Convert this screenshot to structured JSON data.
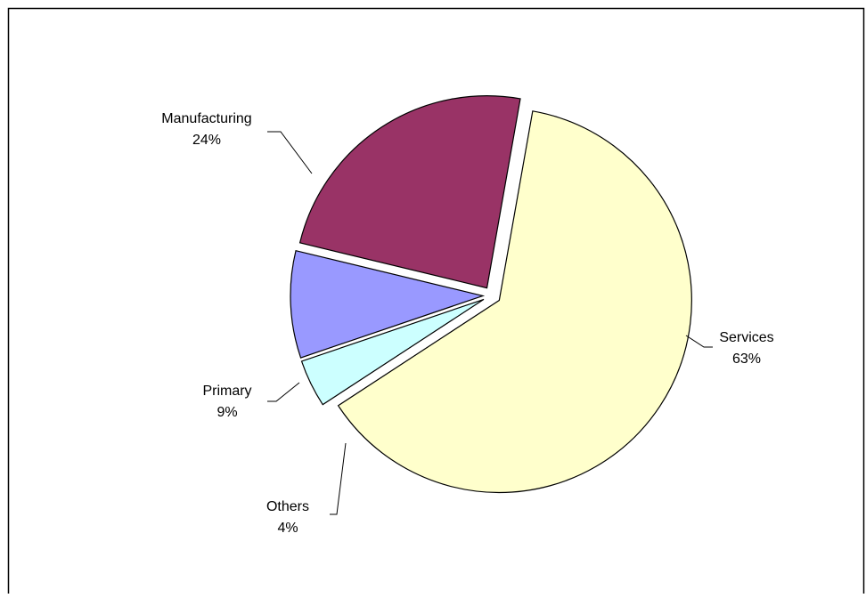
{
  "chart_data": {
    "type": "pie",
    "title": "",
    "slices": [
      {
        "label": "Services",
        "percent_label": "63%",
        "value": 63,
        "color": "#ffffcc",
        "exploded": true
      },
      {
        "label": "Others",
        "percent_label": "4%",
        "value": 4,
        "color": "#ccffff",
        "exploded": true
      },
      {
        "label": "Primary",
        "percent_label": "9%",
        "value": 9,
        "color": "#9999ff",
        "exploded": true
      },
      {
        "label": "Manufacturing",
        "percent_label": "24%",
        "value": 24,
        "color": "#993366",
        "exploded": true
      }
    ],
    "legend": "none",
    "data_labels": "outside-with-leader-lines"
  }
}
